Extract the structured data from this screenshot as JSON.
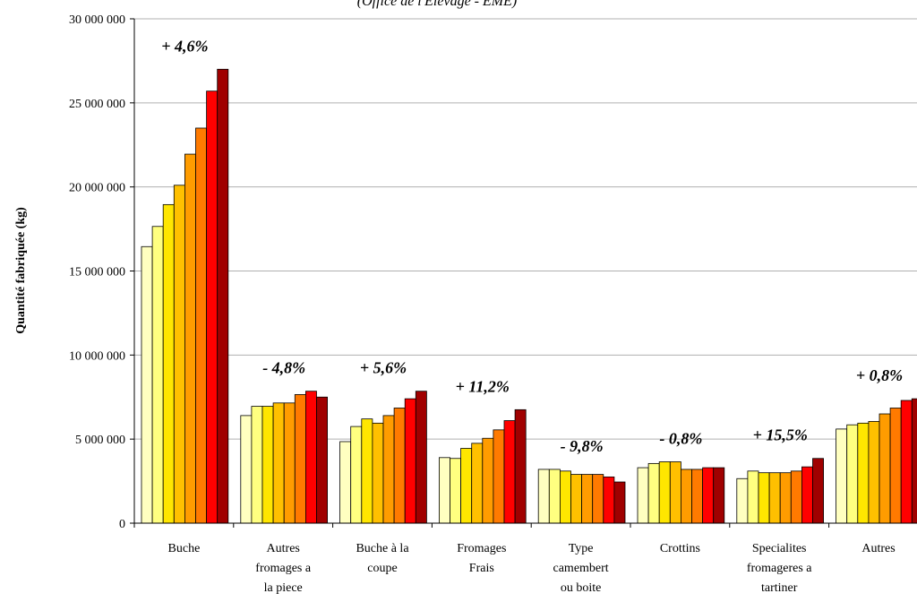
{
  "chart_data": {
    "type": "bar",
    "subtitle": "(Office de l'Elevage - EME)",
    "ylabel": "Quantité fabriquée (kg)",
    "xlabel": "",
    "ylim": [
      0,
      30000000
    ],
    "yticks": [
      0,
      5000000,
      10000000,
      15000000,
      20000000,
      25000000,
      30000000
    ],
    "ytick_labels": [
      "0",
      "5 000 000",
      "10 000 000",
      "15 000 000",
      "20 000 000",
      "25 000 000",
      "30 000 000"
    ],
    "grid": true,
    "legend": "none",
    "series_colors": [
      "#FFFFC0",
      "#FFFF80",
      "#FFE600",
      "#FFC000",
      "#FF9C00",
      "#FF7A00",
      "#FF0000",
      "#A00000"
    ],
    "categories": [
      {
        "label": "Buche",
        "lines": [
          "Buche"
        ],
        "change": "+ 4,6%",
        "values": [
          16450000,
          17650000,
          18950000,
          20100000,
          21950000,
          23500000,
          25700000,
          27000000
        ]
      },
      {
        "label": "Autres fromages a la piece",
        "lines": [
          "Autres",
          "fromages a",
          "la piece"
        ],
        "change": "- 4,8%",
        "values": [
          6400000,
          6950000,
          6950000,
          7150000,
          7150000,
          7650000,
          7850000,
          7500000
        ]
      },
      {
        "label": "Buche à la coupe",
        "lines": [
          "Buche à la",
          "coupe"
        ],
        "change": "+ 5,6%",
        "values": [
          4850000,
          5750000,
          6200000,
          5950000,
          6400000,
          6850000,
          7400000,
          7850000
        ]
      },
      {
        "label": "Fromages Frais",
        "lines": [
          "Fromages",
          "Frais"
        ],
        "change": "+ 11,2%",
        "values": [
          3900000,
          3850000,
          4450000,
          4750000,
          5050000,
          5550000,
          6100000,
          6750000
        ]
      },
      {
        "label": "Type camembert ou boite",
        "lines": [
          "Type",
          "camembert",
          "ou boite"
        ],
        "change": "- 9,8%",
        "values": [
          3200000,
          3200000,
          3100000,
          2900000,
          2900000,
          2900000,
          2750000,
          2450000
        ]
      },
      {
        "label": "Crottins",
        "lines": [
          "Crottins"
        ],
        "change": "- 0,8%",
        "values": [
          3300000,
          3550000,
          3650000,
          3650000,
          3200000,
          3200000,
          3300000,
          3300000
        ]
      },
      {
        "label": "Specialites fromageres a tartiner",
        "lines": [
          "Specialites",
          "fromageres a",
          "tartiner"
        ],
        "change": "+ 15,5%",
        "values": [
          2650000,
          3100000,
          3000000,
          3000000,
          3000000,
          3100000,
          3350000,
          3850000
        ]
      },
      {
        "label": "Autres",
        "lines": [
          "Autres"
        ],
        "change": "+ 0,8%",
        "values": [
          5600000,
          5850000,
          5950000,
          6050000,
          6500000,
          6850000,
          7300000,
          7400000
        ]
      }
    ]
  }
}
